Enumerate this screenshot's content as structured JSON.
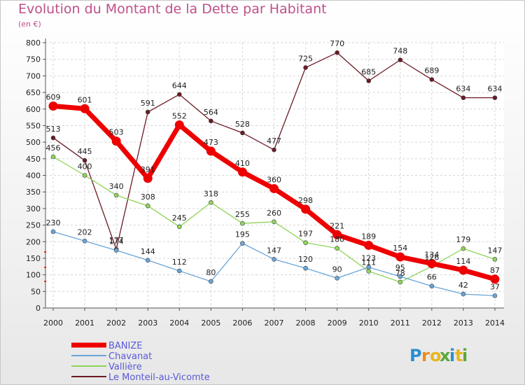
{
  "title": "Evolution du Montant de la Dette par Habitant",
  "subtitle": "(en €)",
  "brand": {
    "letters": [
      "P",
      "r",
      "o",
      "x",
      "i",
      "t",
      "i"
    ],
    "colors": [
      "#2b8fcf",
      "#f08a1c",
      "#e8b61c",
      "#5aa83a",
      "#2b8fcf",
      "#e8b61c",
      "#5aa83a"
    ]
  },
  "chart_data": {
    "type": "line",
    "x": [
      "2000",
      "2001",
      "2002",
      "2003",
      "2004",
      "2005",
      "2006",
      "2007",
      "2008",
      "2009",
      "2010",
      "2011",
      "2012",
      "2013",
      "2014"
    ],
    "ylim": [
      0,
      800
    ],
    "yticks": [
      "0",
      "50",
      "100",
      "150",
      "200",
      "250",
      "300",
      "350",
      "400",
      "450",
      "500",
      "550",
      "600",
      "650",
      "700",
      "750",
      "800"
    ],
    "grid": true,
    "legend_position": "bottom-left",
    "series": [
      {
        "name": "Le Monteil-au-Vicomte",
        "color": "#6b1a24",
        "width": 1.3,
        "r": 3,
        "values": [
          513,
          445,
          177,
          591,
          644,
          564,
          528,
          477,
          725,
          770,
          685,
          748,
          689,
          634,
          634
        ],
        "labels": [
          "513",
          "445",
          "177",
          "591",
          "644",
          "564",
          "528",
          "477",
          "725",
          "770",
          "685",
          "748",
          "689",
          "634",
          "634"
        ]
      },
      {
        "name": "Vallière",
        "color": "#8fd45a",
        "width": 1.3,
        "r": 3,
        "values": [
          456,
          400,
          340,
          308,
          245,
          318,
          255,
          260,
          197,
          180,
          111,
          78,
          126,
          179,
          147
        ],
        "labels": [
          "456",
          "400",
          "340",
          "308",
          "245",
          "318",
          "255",
          "260",
          "197",
          "180",
          "111",
          "78",
          "126",
          "179",
          "147"
        ]
      },
      {
        "name": "Chavanat",
        "color": "#6aa5d8",
        "width": 1.3,
        "r": 3,
        "values": [
          230,
          202,
          174,
          144,
          112,
          80,
          195,
          147,
          120,
          90,
          123,
          95,
          66,
          42,
          37
        ],
        "labels": [
          "230",
          "202",
          "174",
          "144",
          "112",
          "80",
          "195",
          "147",
          "120",
          "90",
          "123",
          "95",
          "66",
          "42",
          "37"
        ]
      },
      {
        "name": "BANIZE",
        "color": "#ee0000",
        "width": 7,
        "r": 6.5,
        "values": [
          609,
          601,
          503,
          391,
          552,
          473,
          410,
          360,
          298,
          221,
          189,
          154,
          134,
          114,
          87
        ],
        "labels": [
          "609",
          "601",
          "503",
          "391",
          "552",
          "473",
          "410",
          "360",
          "298",
          "221",
          "189",
          "154",
          "134",
          "114",
          "87"
        ]
      }
    ]
  }
}
